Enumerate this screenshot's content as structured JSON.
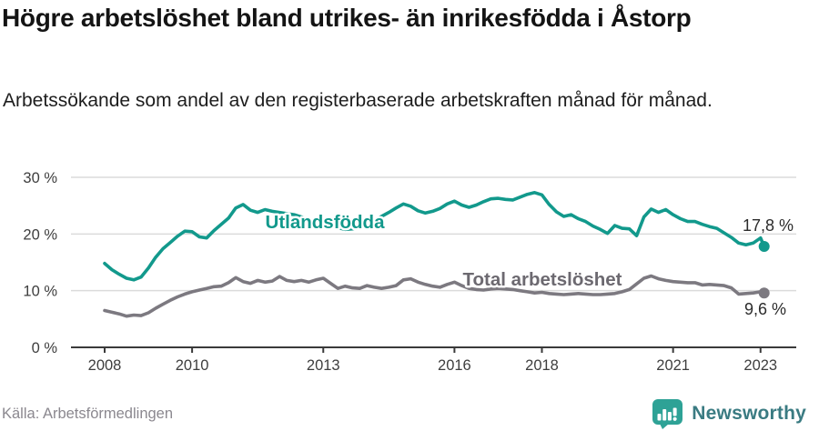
{
  "header": {
    "note": "title and subtitle are bound from chart_data"
  },
  "chart_data": {
    "type": "line",
    "title": "Högre arbetslöshet bland utrikes- än inrikesfödda i Åstorp",
    "subtitle": "Arbetssökande som andel av den registerbaserade arbetskraften månad för månad.",
    "legend_position": "inline-labels",
    "grid": "horizontal",
    "x_axis": {
      "start": 2008,
      "end": 2023.083,
      "points_per_year": 6,
      "ticks": [
        {
          "year": 2008,
          "label": "2008"
        },
        {
          "year": 2010,
          "label": "2010"
        },
        {
          "year": 2013,
          "label": "2013"
        },
        {
          "year": 2016,
          "label": "2016"
        },
        {
          "year": 2018,
          "label": "2018"
        },
        {
          "year": 2021,
          "label": "2021"
        },
        {
          "year": 2023,
          "label": "2023"
        }
      ]
    },
    "y_axis": {
      "unit": "%",
      "range": [
        0,
        30
      ],
      "ticks": [
        {
          "value": 0,
          "label": "0 %"
        },
        {
          "value": 10,
          "label": "10 %"
        },
        {
          "value": 20,
          "label": "20 %"
        },
        {
          "value": 30,
          "label": "30 %"
        }
      ]
    },
    "series": [
      {
        "name": "Utlandsfödda",
        "color": "#12998C",
        "label_color": "#12998C",
        "end_value_label": "17,8 %",
        "end_value": 17.8,
        "values": [
          14.8,
          13.7,
          12.9,
          12.2,
          11.9,
          12.4,
          14.0,
          15.9,
          17.4,
          18.5,
          19.6,
          20.5,
          20.4,
          19.5,
          19.3,
          20.6,
          21.7,
          22.8,
          24.6,
          25.2,
          24.2,
          23.8,
          24.3,
          24.0,
          23.8,
          23.6,
          23.4,
          23.0,
          22.6,
          22.3,
          22.1,
          21.6,
          21.1,
          20.8,
          20.9,
          21.2,
          21.8,
          22.4,
          23.1,
          23.8,
          24.6,
          25.3,
          24.9,
          24.1,
          23.7,
          24.0,
          24.5,
          25.3,
          25.8,
          25.1,
          24.7,
          25.1,
          25.7,
          26.2,
          26.3,
          26.1,
          26.0,
          26.5,
          27.0,
          27.3,
          26.9,
          25.2,
          23.9,
          23.1,
          23.4,
          22.7,
          22.2,
          21.4,
          20.8,
          20.1,
          21.5,
          21.0,
          20.9,
          19.7,
          23.0,
          24.4,
          23.8,
          24.3,
          23.4,
          22.7,
          22.2,
          22.2,
          21.7,
          21.3,
          21.0,
          20.2,
          19.4,
          18.4,
          18.1,
          18.4,
          19.3,
          17.8
        ]
      },
      {
        "name": "Total arbetslöshet",
        "color": "#7C7980",
        "label_color": "#6C6970",
        "end_value_label": "9,6 %",
        "end_value": 9.6,
        "values": [
          6.5,
          6.2,
          5.9,
          5.5,
          5.7,
          5.6,
          6.1,
          6.9,
          7.6,
          8.3,
          8.9,
          9.4,
          9.8,
          10.1,
          10.4,
          10.7,
          10.8,
          11.4,
          12.3,
          11.6,
          11.3,
          11.8,
          11.5,
          11.7,
          12.5,
          11.8,
          11.6,
          11.8,
          11.5,
          11.9,
          12.2,
          11.3,
          10.4,
          10.8,
          10.5,
          10.4,
          10.9,
          10.6,
          10.4,
          10.6,
          10.9,
          11.9,
          12.1,
          11.5,
          11.1,
          10.8,
          10.6,
          11.1,
          11.5,
          10.9,
          10.4,
          10.2,
          10.1,
          10.3,
          10.4,
          10.3,
          10.2,
          10.0,
          9.8,
          9.6,
          9.7,
          9.5,
          9.4,
          9.3,
          9.4,
          9.5,
          9.4,
          9.3,
          9.3,
          9.4,
          9.5,
          9.8,
          10.2,
          11.2,
          12.2,
          12.6,
          12.1,
          11.8,
          11.6,
          11.5,
          11.4,
          11.4,
          11.0,
          11.1,
          11.0,
          10.9,
          10.5,
          9.4,
          9.5,
          9.6,
          9.8,
          9.6
        ]
      }
    ]
  },
  "footer": {
    "source": "Källa: Arbetsförmedlingen",
    "brand": "Newsworthy",
    "brand_icon": "speech-bubble-bar-chart",
    "brand_icon_color": "#2EA296",
    "brand_text_color": "#3A7B82"
  }
}
